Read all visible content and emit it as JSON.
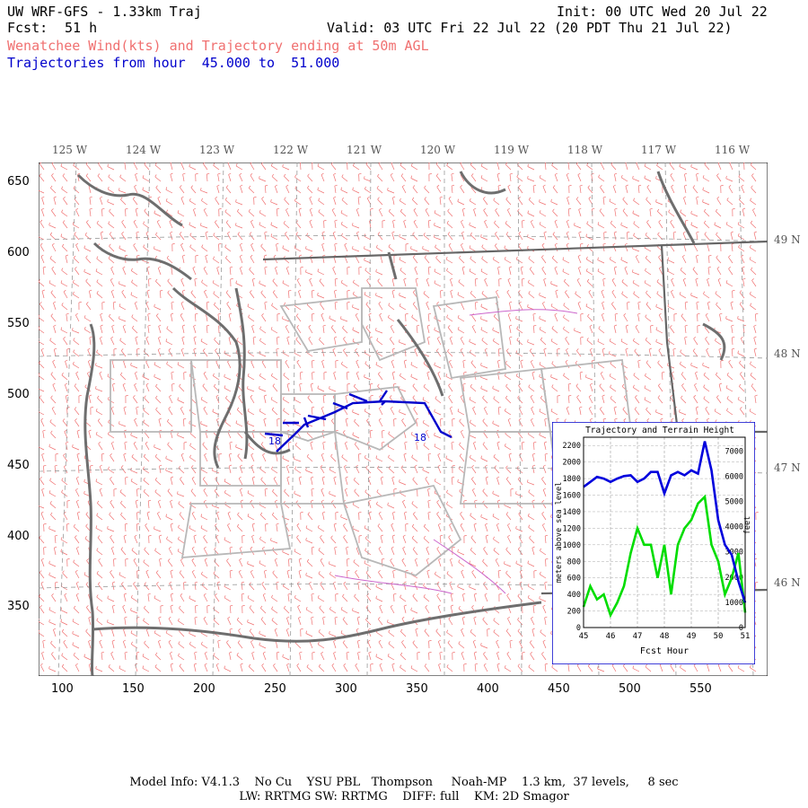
{
  "header": {
    "model": "UW WRF-GFS - 1.33km Traj",
    "fcst_label": "Fcst:",
    "fcst_value": "51 h",
    "init": "Init: 00 UTC Wed 20 Jul 22",
    "valid": "Valid: 03 UTC Fri 22 Jul 22 (20 PDT Thu 21 Jul 22)",
    "field": "Wenatchee Wind(kts) and Trajectory ending at 50m AGL",
    "traj_from": "Trajectories from hour  45.000 to  51.000"
  },
  "map": {
    "lon_labels": [
      "125 W",
      "124 W",
      "123 W",
      "122 W",
      "121 W",
      "120 W",
      "119 W",
      "118 W",
      "117 W",
      "116 W"
    ],
    "lat_labels": [
      "49 N",
      "48 N",
      "47 N",
      "46 N"
    ],
    "y_ticks": [
      "650",
      "600",
      "550",
      "500",
      "450",
      "400",
      "350"
    ],
    "x_ticks": [
      "100",
      "150",
      "200",
      "250",
      "300",
      "350",
      "400",
      "450",
      "500",
      "550"
    ],
    "traj_start_label": "18",
    "traj_end_label": "18",
    "colors": {
      "barbs": "#f07070",
      "trajectory": "#0000cc",
      "terrain_boundary": "#707070",
      "state_lines": "#b0b0b0",
      "county_lines": "#cc66cc"
    }
  },
  "inset": {
    "title": "Trajectory and Terrain Height",
    "xlabel": "Fcst Hour",
    "ylabel_left": "meters above sea level",
    "ylabel_right": "feet",
    "left_ticks": [
      "0",
      "200",
      "400",
      "600",
      "800",
      "1000",
      "1200",
      "1400",
      "1600",
      "1800",
      "2000",
      "2200"
    ],
    "right_ticks": [
      "0",
      "1000",
      "2000",
      "3000",
      "4000",
      "5000",
      "6000",
      "7000"
    ],
    "x_ticks": [
      "45",
      "46",
      "47",
      "48",
      "49",
      "50",
      "51"
    ]
  },
  "chart_data": {
    "type": "line",
    "title": "Trajectory and Terrain Height",
    "xlabel": "Fcst Hour",
    "ylabel": "meters above sea level",
    "y2label": "feet",
    "xlim": [
      45,
      51
    ],
    "ylim": [
      0,
      2300
    ],
    "series": [
      {
        "color": "#0000dd",
        "x": [
          45.0,
          45.25,
          45.5,
          45.75,
          46.0,
          46.25,
          46.5,
          46.75,
          47.0,
          47.25,
          47.5,
          47.75,
          48.0,
          48.25,
          48.5,
          48.75,
          49.0,
          49.25,
          49.5,
          49.75,
          50.0,
          50.25,
          50.5,
          50.75,
          51.0
        ],
        "values": [
          1700,
          1760,
          1820,
          1800,
          1760,
          1800,
          1830,
          1840,
          1760,
          1800,
          1880,
          1880,
          1620,
          1840,
          1880,
          1840,
          1900,
          1860,
          2250,
          1900,
          1300,
          1000,
          880,
          560,
          300
        ]
      },
      {
        "color": "#00dd00",
        "x": [
          45.0,
          45.25,
          45.5,
          45.75,
          46.0,
          46.25,
          46.5,
          46.75,
          47.0,
          47.25,
          47.5,
          47.75,
          48.0,
          48.25,
          48.5,
          48.75,
          49.0,
          49.25,
          49.5,
          49.75,
          50.0,
          50.25,
          50.5,
          50.75,
          51.0
        ],
        "values": [
          250,
          500,
          340,
          400,
          150,
          300,
          500,
          900,
          1200,
          1000,
          1000,
          600,
          1000,
          400,
          1000,
          1200,
          1300,
          1500,
          1580,
          1000,
          800,
          400,
          600,
          900,
          180
        ]
      }
    ]
  },
  "footer": {
    "line1": "Model Info: V4.1.3    No Cu    YSU PBL   Thompson     Noah-MP    1.3 km,  37 levels,     8 sec",
    "line2": "LW: RRTMG SW: RRTMG    DIFF: full    KM: 2D Smagor"
  }
}
